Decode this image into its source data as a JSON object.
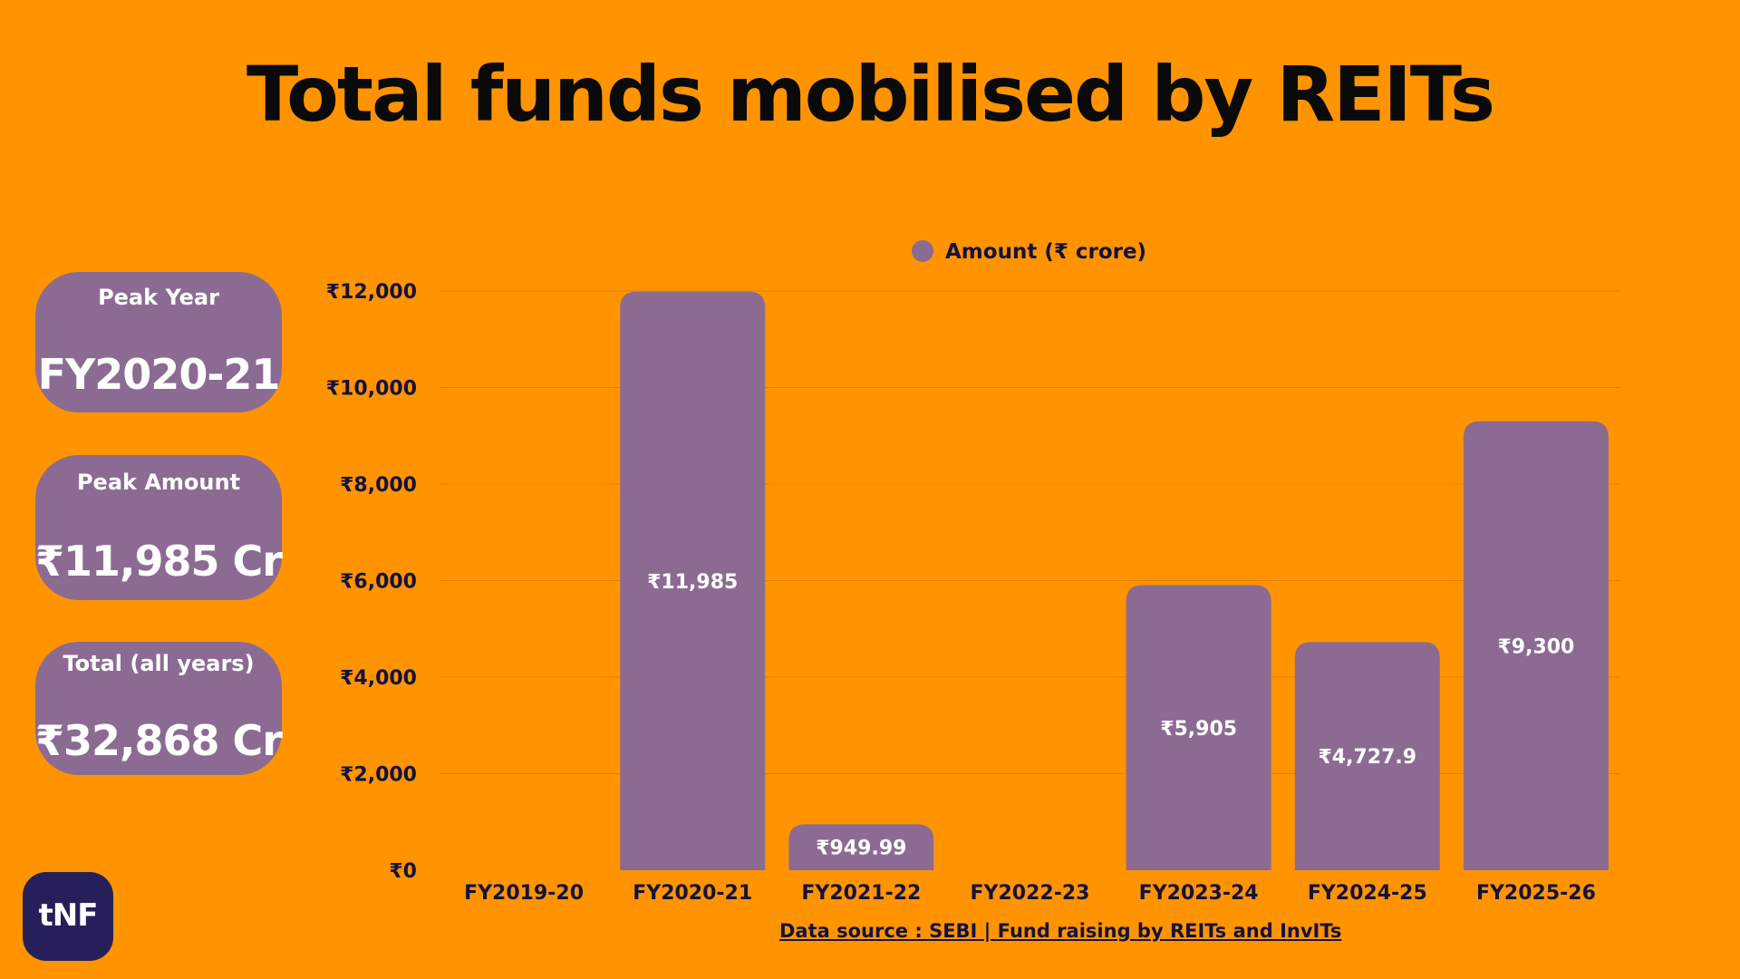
{
  "title": "Total funds mobilised by REITs",
  "stats": {
    "peak_year_label": "Peak Year",
    "peak_year_value": "FY2020-21",
    "peak_amount_label": "Peak Amount",
    "peak_amount_value": "₹11,985 Cr",
    "total_label": "Total (all years)",
    "total_value": "₹32,868 Cr"
  },
  "source_text": "Data source : SEBI | Fund raising by REITs and InvITs",
  "logo_text": "tNF",
  "colors": {
    "background": "#FF9400",
    "bar": "#8C6B93",
    "axis_text": "#14113d",
    "logo_bg": "#26205A"
  },
  "chart_data": {
    "type": "bar",
    "title": "Total funds mobilised by REITs",
    "categories": [
      "FY2019-20",
      "FY2020-21",
      "FY2021-22",
      "FY2022-23",
      "FY2023-24",
      "FY2024-25",
      "FY2025-26"
    ],
    "series": [
      {
        "name": "Amount (₹ crore)",
        "values": [
          0,
          11985,
          949.99,
          0,
          5905,
          4727.9,
          9300
        ],
        "labels": [
          "",
          "₹11,985",
          "₹949.99",
          "",
          "₹5,905",
          "₹4,727.9",
          "₹9,300"
        ]
      }
    ],
    "ylim": [
      0,
      12000
    ],
    "yticks": [
      0,
      2000,
      4000,
      6000,
      8000,
      10000,
      12000
    ],
    "ytick_labels": [
      "₹0",
      "₹2,000",
      "₹4,000",
      "₹6,000",
      "₹8,000",
      "₹10,000",
      "₹12,000"
    ],
    "xlabel": "",
    "ylabel": "",
    "grid": true,
    "legend_position": "top"
  }
}
